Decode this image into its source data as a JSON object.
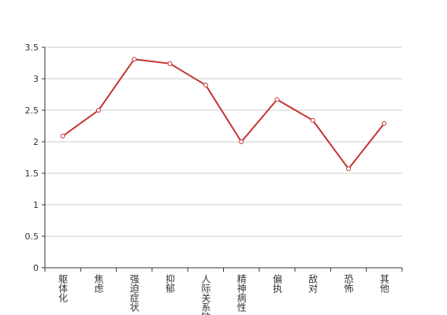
{
  "chart_data": {
    "type": "line",
    "categories": [
      "躯体化",
      "焦虑",
      "强迫症状",
      "抑郁",
      "人际关系敏感",
      "精神病性",
      "偏执",
      "敌对",
      "恐怖",
      "其他"
    ],
    "values": [
      2.09,
      2.5,
      3.31,
      3.24,
      2.9,
      2.0,
      2.67,
      2.34,
      1.57,
      2.29
    ],
    "color": "#c23531",
    "ylim": [
      0,
      3.5
    ],
    "yticks": [
      0,
      0.5,
      1,
      1.5,
      2,
      2.5,
      3,
      3.5
    ],
    "grid": true
  }
}
